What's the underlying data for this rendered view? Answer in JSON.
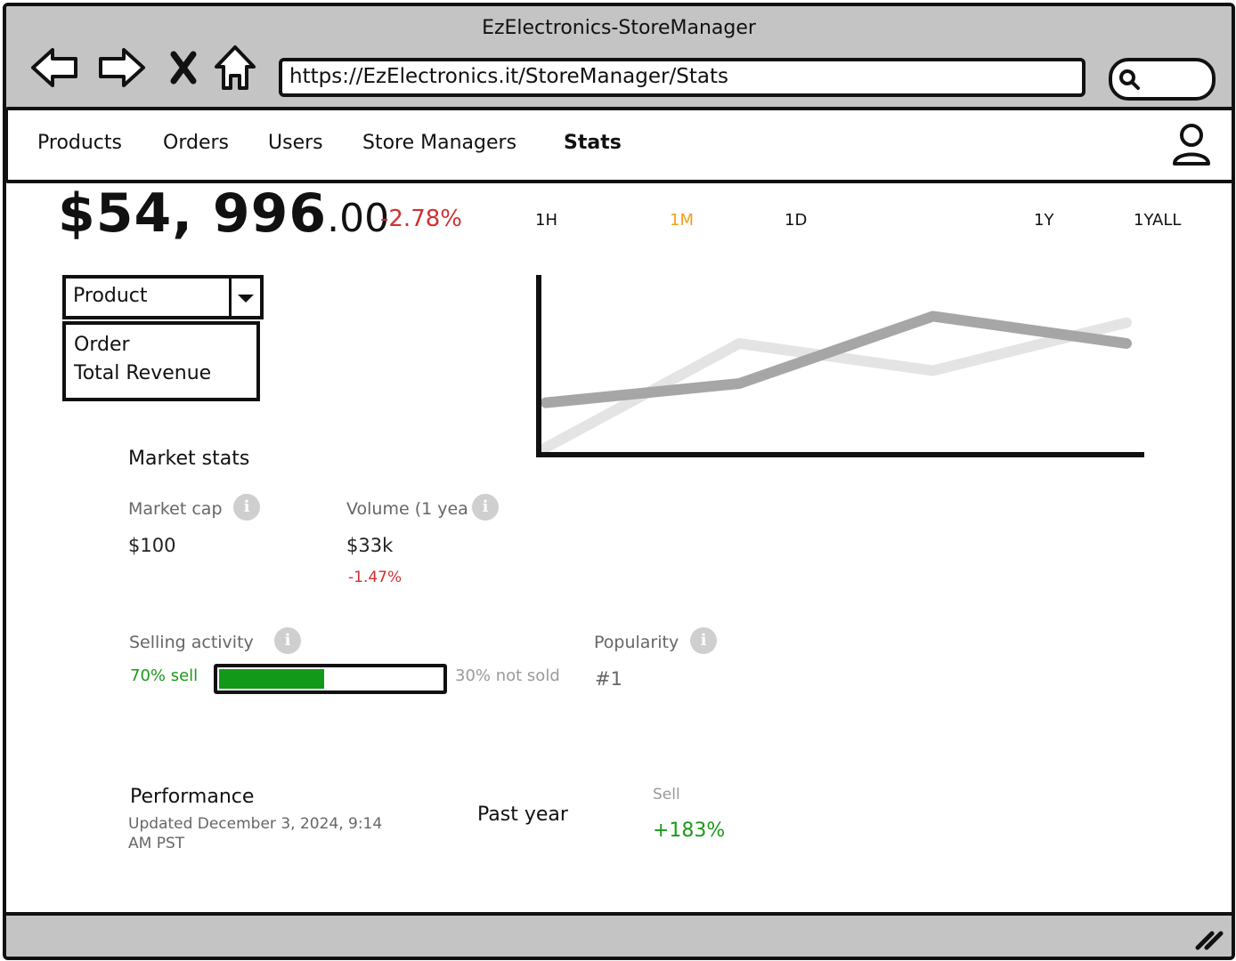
{
  "window": {
    "title": "EzElectronics-StoreManager",
    "url": "https://EzElectronics.it/StoreManager/Stats"
  },
  "toolbar": {
    "back_icon": "back-arrow-icon",
    "forward_icon": "forward-arrow-icon",
    "stop_icon": "close-icon",
    "home_icon": "home-icon",
    "search_icon": "search-icon"
  },
  "nav": {
    "items": [
      {
        "label": "Products"
      },
      {
        "label": "Orders"
      },
      {
        "label": "Users"
      },
      {
        "label": "Store Managers"
      },
      {
        "label": "Stats",
        "active": true
      }
    ],
    "user_icon": "user-icon"
  },
  "header": {
    "price_main": "$54, 996",
    "price_cents": ".00",
    "price_change": "-2.78%",
    "ranges": [
      "1H",
      "1M",
      "1D",
      "1Y",
      "1YALL"
    ],
    "selected_range": "1M"
  },
  "metric_select": {
    "selected": "Product",
    "options": [
      "Order",
      "Total Revenue"
    ]
  },
  "chart_data": {
    "type": "line",
    "series": [
      {
        "color": "#e4e4e4",
        "values": [
          0,
          65,
          48,
          78
        ]
      },
      {
        "color": "#a6a6a6",
        "values": [
          28,
          40,
          82,
          65
        ]
      }
    ],
    "ylim": [
      0,
      100
    ],
    "grid": false
  },
  "market_stats": {
    "title": "Market stats",
    "market_cap": {
      "label": "Market cap",
      "value": "$100"
    },
    "volume": {
      "label": "Volume (1 yea",
      "value": "$33k",
      "change": "-1.47%"
    },
    "selling_activity": {
      "label": "Selling activity",
      "sell_label": "70% sell",
      "not_sold_label": "30% not sold",
      "sell_fraction": 0.7
    },
    "popularity": {
      "label": "Popularity",
      "value": "#1"
    },
    "info_icon": "i"
  },
  "performance": {
    "title": "Performance",
    "updated": "Updated December 3, 2024, 9:14",
    "updated_tz": "AM PST",
    "period": "Past year",
    "sell_label": "Sell",
    "sell_value": "+183%"
  },
  "colors": {
    "titlebar": "#c4c4c4",
    "negative": "#d13030",
    "positive": "#1a9a1a",
    "selected_range": "#f0a020"
  }
}
